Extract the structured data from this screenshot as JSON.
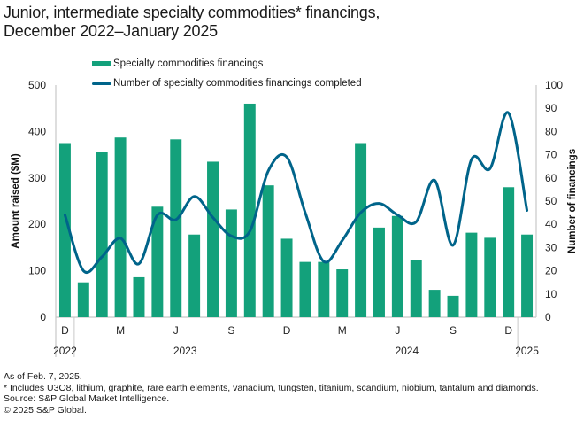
{
  "title_line1": "Junior, intermediate specialty commodities* financings,",
  "title_line2": "December 2022–January 2025",
  "legend": {
    "bar_label": "Specialty commodities financings",
    "line_label": "Number of specialty commodities financings completed"
  },
  "colors": {
    "bar": "#13a17b",
    "line": "#00648a",
    "axis": "#c8c8c8"
  },
  "footnotes": {
    "as_of": "As of Feb. 7, 2025.",
    "includes": "* Includes U3O8, lithium, graphite, rare earth elements, vanadium, tungsten, titanium, scandium, niobium, tantalum and diamonds.",
    "source": "Source: S&P Global Market Intelligence.",
    "copyright": "© 2025 S&P Global."
  },
  "chart_data": {
    "type": "bar",
    "title": "Junior, intermediate specialty commodities* financings, December 2022–January 2025",
    "categories": [
      "Dec 2022",
      "Jan 2023",
      "Feb 2023",
      "Mar 2023",
      "Apr 2023",
      "May 2023",
      "Jun 2023",
      "Jul 2023",
      "Aug 2023",
      "Sep 2023",
      "Oct 2023",
      "Nov 2023",
      "Dec 2023",
      "Jan 2024",
      "Feb 2024",
      "Mar 2024",
      "Apr 2024",
      "May 2024",
      "Jun 2024",
      "Jul 2024",
      "Aug 2024",
      "Sep 2024",
      "Oct 2024",
      "Nov 2024",
      "Dec 2024",
      "Jan 2025"
    ],
    "x_tick_labels": [
      "D",
      "",
      "",
      "M",
      "",
      "",
      "J",
      "",
      "",
      "S",
      "",
      "",
      "D",
      "",
      "",
      "M",
      "",
      "",
      "J",
      "",
      "",
      "S",
      "",
      "",
      "D",
      ""
    ],
    "year_labels": [
      {
        "label": "2022",
        "start": 0,
        "end": 0
      },
      {
        "label": "2023",
        "start": 1,
        "end": 12
      },
      {
        "label": "2024",
        "start": 13,
        "end": 24
      },
      {
        "label": "2025",
        "start": 25,
        "end": 25
      }
    ],
    "series": [
      {
        "name": "Specialty commodities financings",
        "type": "bar",
        "axis": "left",
        "values": [
          375,
          75,
          355,
          387,
          86,
          238,
          383,
          178,
          335,
          232,
          460,
          284,
          169,
          119,
          119,
          103,
          375,
          193,
          218,
          123,
          59,
          46,
          182,
          171,
          280,
          178
        ]
      },
      {
        "name": "Number of specialty commodities financings completed",
        "type": "line",
        "smooth": true,
        "axis": "right",
        "values": [
          44,
          20,
          26,
          34,
          23,
          44,
          42,
          52,
          43,
          35,
          37,
          63,
          69,
          45,
          24,
          33,
          45,
          49,
          44,
          41,
          59,
          31,
          68,
          64,
          88,
          46
        ]
      }
    ],
    "ylabel": "Amount raised ($M)",
    "ylim": [
      0,
      500
    ],
    "yticks": [
      0,
      100,
      200,
      300,
      400,
      500
    ],
    "y2label": "Number of financings",
    "y2lim": [
      0,
      100
    ],
    "y2ticks": [
      0,
      10,
      20,
      30,
      40,
      50,
      60,
      70,
      80,
      90,
      100
    ],
    "grid": false,
    "legend_position": "top-center"
  }
}
